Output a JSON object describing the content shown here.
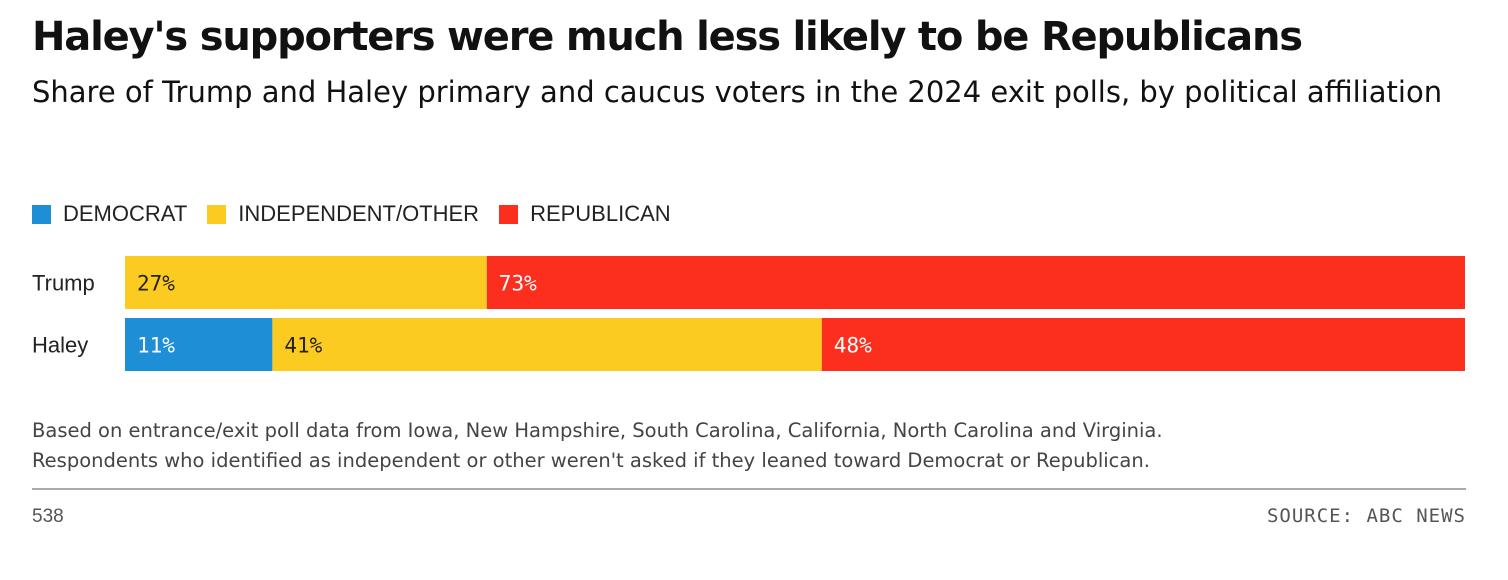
{
  "chart_data": {
    "type": "bar",
    "orientation": "horizontal",
    "stacked": true,
    "title": "Haley's supporters were much less likely to be Republicans",
    "subtitle": "Share of Trump and Haley primary and caucus voters in the 2024 exit polls, by political affiliation",
    "categories": [
      "Trump",
      "Haley"
    ],
    "series": [
      {
        "name": "DEMOCRAT",
        "color": "#1e8fd6",
        "values": [
          0,
          11
        ]
      },
      {
        "name": "INDEPENDENT/OTHER",
        "color": "#fccb22",
        "values": [
          27,
          41
        ]
      },
      {
        "name": "REPUBLICAN",
        "color": "#fc2f1f",
        "values": [
          73,
          48
        ]
      }
    ],
    "value_suffix": "%",
    "xlim": [
      0,
      100
    ],
    "legend_position": "top-left",
    "grid": false
  },
  "note": {
    "line1": "Based on entrance/exit poll data from Iowa, New Hampshire, South Carolina, California, North Carolina and Virginia.",
    "line2": "Respondents who identified as independent or other weren't asked if they leaned toward Democrat or Republican."
  },
  "footer": {
    "brand": "538",
    "source": "SOURCE: ABC NEWS"
  }
}
